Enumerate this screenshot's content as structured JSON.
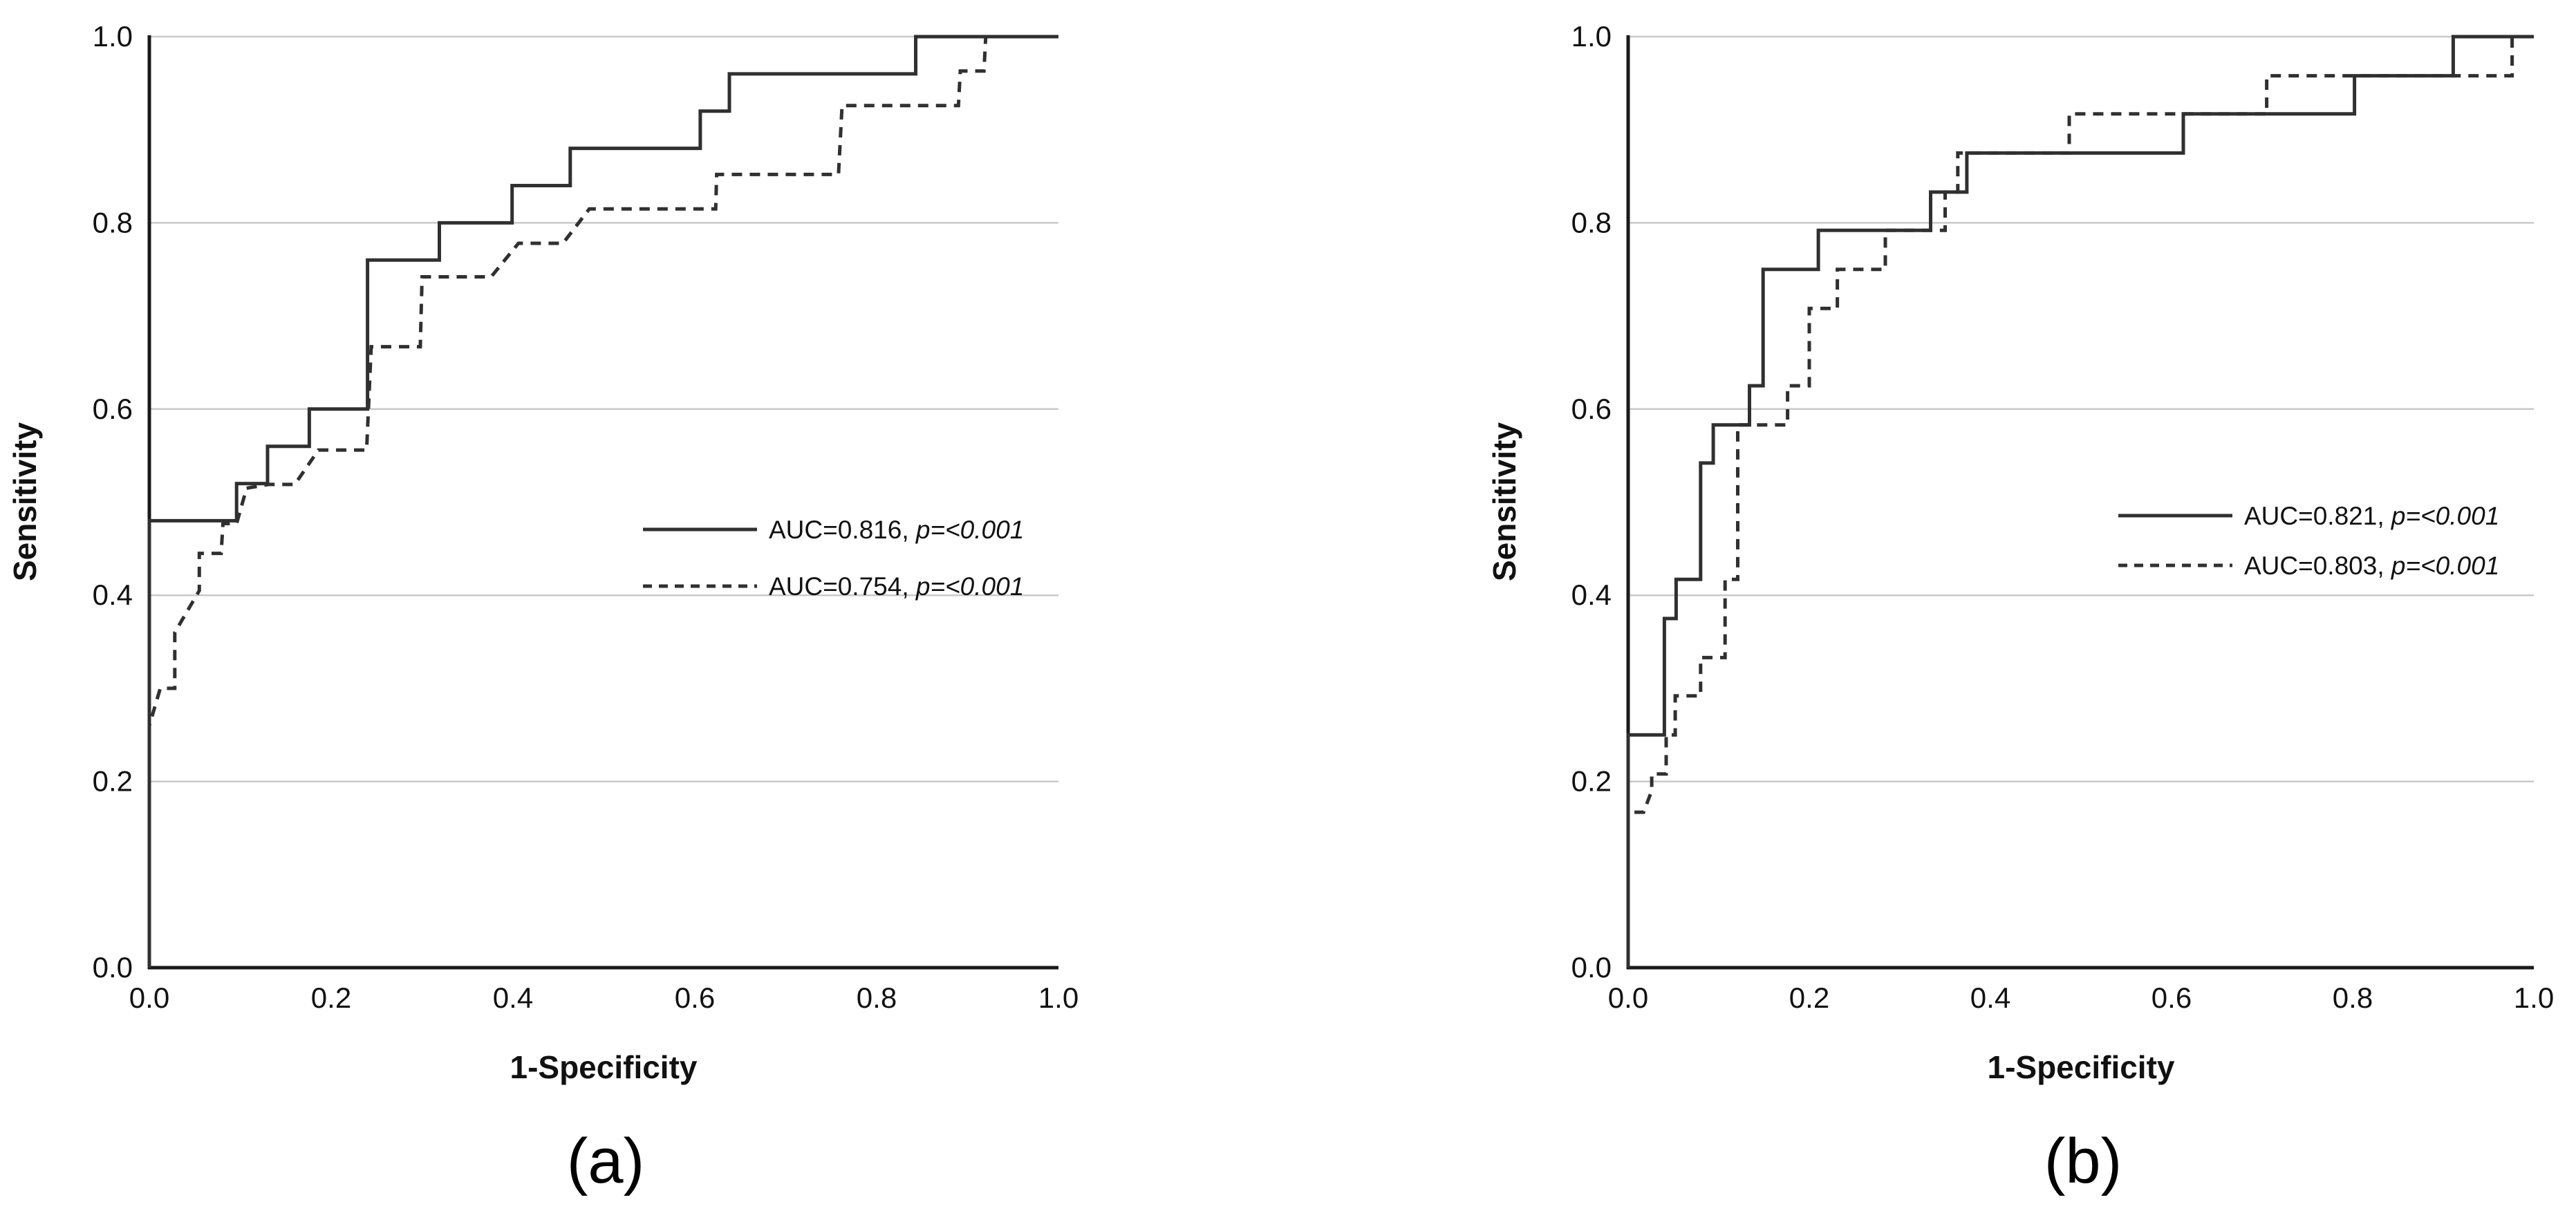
{
  "figure": {
    "background": "#ffffff",
    "captions": {
      "a": "(a)",
      "b": "(b)"
    }
  },
  "colors": {
    "curve": "#303030",
    "grid": "#c9c9c9",
    "axis": "#1a1a1a",
    "text": "#111111"
  },
  "chart_data": [
    {
      "panel": "a",
      "type": "line",
      "subtype": "roc-step-curves",
      "title": "",
      "xlabel": "1-Specificity",
      "ylabel": "Sensitivity",
      "xlim": [
        0,
        1
      ],
      "ylim": [
        0,
        1
      ],
      "x_ticks": [
        "0.0",
        "0.2",
        "0.4",
        "0.6",
        "0.8",
        "1.0"
      ],
      "y_ticks": [
        "0.0",
        "0.2",
        "0.4",
        "0.6",
        "0.8",
        "1.0"
      ],
      "grid": "horizontal-only",
      "legend_position": "inside-right-center",
      "series": [
        {
          "name": "AUC=0.816, p=<0.001",
          "label_prefix": "AUC=0.816, ",
          "label_italic": "p=<0.001",
          "auc": 0.816,
          "p_value": "<0.001",
          "style": "solid",
          "points": [
            [
              0,
              0
            ],
            [
              0,
              0.48
            ],
            [
              0.096,
              0.48
            ],
            [
              0.096,
              0.52
            ],
            [
              0.13,
              0.52
            ],
            [
              0.13,
              0.56
            ],
            [
              0.176,
              0.56
            ],
            [
              0.176,
              0.6
            ],
            [
              0.24,
              0.6
            ],
            [
              0.24,
              0.76
            ],
            [
              0.319,
              0.76
            ],
            [
              0.319,
              0.8
            ],
            [
              0.399,
              0.8
            ],
            [
              0.399,
              0.84
            ],
            [
              0.463,
              0.84
            ],
            [
              0.463,
              0.88
            ],
            [
              0.606,
              0.88
            ],
            [
              0.606,
              0.92
            ],
            [
              0.638,
              0.92
            ],
            [
              0.638,
              0.96
            ],
            [
              0.843,
              0.96
            ],
            [
              0.843,
              1.0
            ],
            [
              1,
              1
            ]
          ]
        },
        {
          "name": "AUC=0.754, p=<0.001",
          "label_prefix": "AUC=0.754, ",
          "label_italic": "p=<0.001",
          "auc": 0.754,
          "p_value": "<0.001",
          "style": "dashed",
          "points": [
            [
              0,
              0
            ],
            [
              0,
              0.26
            ],
            [
              0.012,
              0.3
            ],
            [
              0.028,
              0.3
            ],
            [
              0.028,
              0.36
            ],
            [
              0.043,
              0.385
            ],
            [
              0.055,
              0.405
            ],
            [
              0.055,
              0.445
            ],
            [
              0.079,
              0.445
            ],
            [
              0.081,
              0.477
            ],
            [
              0.096,
              0.477
            ],
            [
              0.107,
              0.515
            ],
            [
              0.131,
              0.519
            ],
            [
              0.16,
              0.519
            ],
            [
              0.186,
              0.556
            ],
            [
              0.239,
              0.556
            ],
            [
              0.244,
              0.667
            ],
            [
              0.298,
              0.667
            ],
            [
              0.3,
              0.742
            ],
            [
              0.376,
              0.742
            ],
            [
              0.406,
              0.778
            ],
            [
              0.455,
              0.778
            ],
            [
              0.484,
              0.815
            ],
            [
              0.623,
              0.815
            ],
            [
              0.624,
              0.852
            ],
            [
              0.758,
              0.852
            ],
            [
              0.762,
              0.926
            ],
            [
              0.89,
              0.926
            ],
            [
              0.892,
              0.963
            ],
            [
              0.918,
              0.963
            ],
            [
              0.92,
              1.0
            ],
            [
              1,
              1
            ]
          ]
        }
      ]
    },
    {
      "panel": "b",
      "type": "line",
      "subtype": "roc-step-curves",
      "title": "",
      "xlabel": "1-Specificity",
      "ylabel": "Sensitivity",
      "xlim": [
        0,
        1
      ],
      "ylim": [
        0,
        1
      ],
      "x_ticks": [
        "0.0",
        "0.2",
        "0.4",
        "0.6",
        "0.8",
        "1.0"
      ],
      "y_ticks": [
        "0.0",
        "0.2",
        "0.4",
        "0.6",
        "0.8",
        "1.0"
      ],
      "grid": "horizontal-only",
      "legend_position": "inside-right-center",
      "series": [
        {
          "name": "AUC=0.821, p=<0.001",
          "label_prefix": "AUC=0.821, ",
          "label_italic": "p=<0.001",
          "auc": 0.821,
          "p_value": "<0.001",
          "style": "solid",
          "points": [
            [
              0,
              0
            ],
            [
              0,
              0.25
            ],
            [
              0.04,
              0.25
            ],
            [
              0.04,
              0.375
            ],
            [
              0.053,
              0.375
            ],
            [
              0.053,
              0.417
            ],
            [
              0.08,
              0.417
            ],
            [
              0.08,
              0.542
            ],
            [
              0.094,
              0.542
            ],
            [
              0.094,
              0.583
            ],
            [
              0.134,
              0.583
            ],
            [
              0.134,
              0.625
            ],
            [
              0.149,
              0.625
            ],
            [
              0.149,
              0.75
            ],
            [
              0.21,
              0.75
            ],
            [
              0.21,
              0.792
            ],
            [
              0.334,
              0.792
            ],
            [
              0.334,
              0.833
            ],
            [
              0.374,
              0.833
            ],
            [
              0.374,
              0.875
            ],
            [
              0.613,
              0.875
            ],
            [
              0.613,
              0.917
            ],
            [
              0.802,
              0.917
            ],
            [
              0.802,
              0.958
            ],
            [
              0.911,
              0.958
            ],
            [
              0.911,
              1.0
            ],
            [
              1,
              1
            ]
          ]
        },
        {
          "name": "AUC=0.803, p=<0.001",
          "label_prefix": "AUC=0.803, ",
          "label_italic": "p=<0.001",
          "auc": 0.803,
          "p_value": "<0.001",
          "style": "dashed",
          "points": [
            [
              0,
              0
            ],
            [
              0,
              0.167
            ],
            [
              0.017,
              0.167
            ],
            [
              0.026,
              0.19
            ],
            [
              0.026,
              0.208
            ],
            [
              0.042,
              0.208
            ],
            [
              0.042,
              0.25
            ],
            [
              0.052,
              0.25
            ],
            [
              0.052,
              0.292
            ],
            [
              0.08,
              0.292
            ],
            [
              0.08,
              0.333
            ],
            [
              0.107,
              0.333
            ],
            [
              0.107,
              0.417
            ],
            [
              0.121,
              0.417
            ],
            [
              0.121,
              0.583
            ],
            [
              0.176,
              0.583
            ],
            [
              0.176,
              0.625
            ],
            [
              0.2,
              0.625
            ],
            [
              0.2,
              0.708
            ],
            [
              0.231,
              0.708
            ],
            [
              0.231,
              0.75
            ],
            [
              0.284,
              0.75
            ],
            [
              0.284,
              0.792
            ],
            [
              0.35,
              0.792
            ],
            [
              0.35,
              0.833
            ],
            [
              0.364,
              0.833
            ],
            [
              0.364,
              0.875
            ],
            [
              0.487,
              0.875
            ],
            [
              0.487,
              0.917
            ],
            [
              0.705,
              0.917
            ],
            [
              0.705,
              0.958
            ],
            [
              0.976,
              0.958
            ],
            [
              0.976,
              1.0
            ],
            [
              1,
              1
            ]
          ]
        }
      ]
    }
  ]
}
